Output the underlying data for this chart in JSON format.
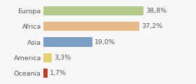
{
  "categories": [
    "Europa",
    "Africa",
    "Asia",
    "America",
    "Oceania"
  ],
  "values": [
    38.8,
    37.2,
    19.0,
    3.3,
    1.7
  ],
  "labels": [
    "38,8%",
    "37,2%",
    "19,0%",
    "3,3%",
    "1,7%"
  ],
  "bar_colors": [
    "#b5c98a",
    "#e8b98a",
    "#7a9fc4",
    "#e8d070",
    "#c0392b"
  ],
  "background_color": "#f8f8f8",
  "xlim": [
    0,
    50
  ],
  "bar_height": 0.6,
  "label_fontsize": 6.8,
  "tick_fontsize": 6.8,
  "grid_color": "#cccccc",
  "text_color": "#555555"
}
